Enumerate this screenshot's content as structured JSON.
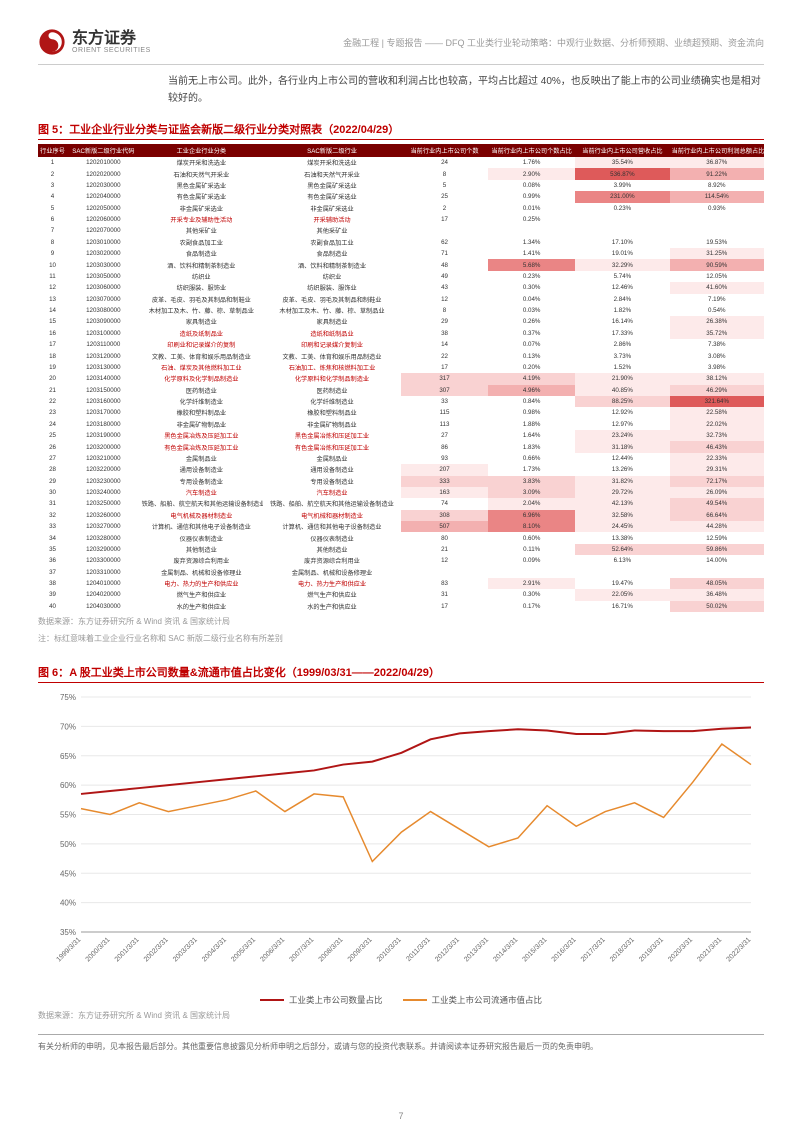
{
  "header": {
    "brand_cn": "东方证券",
    "brand_en": "ORIENT SECURITIES",
    "meta": "金融工程 | 专题报告 —— DFQ 工业类行业轮动策略：中观行业数据、分析师预期、业绩超预期、资金流向"
  },
  "body_para": "当前无上市公司。此外，各行业内上市公司的营收和利润占比也较高，平均占比超过 40%，也反映出了能上市的公司业绩确实也是相对较好的。",
  "figure5": {
    "label": "图 5：",
    "caption": "工业企业行业分类与证监会新版二级行业分类对照表",
    "date": "（2022/04/29）",
    "columns": [
      "行业序号",
      "SAC新版二级行业代码",
      "工业企业行业分类",
      "SAC新版二级行业",
      "当前行业内上市公司个数",
      "当前行业内上市公司个数占比",
      "当前行业内上市公司营收占比",
      "当前行业内上市公司利润总额占比"
    ],
    "col_widths": [
      "4%",
      "10%",
      "17%",
      "19%",
      "12%",
      "12%",
      "13%",
      "13%"
    ],
    "heat_palette": {
      "none": "#ffffff",
      "l1": "#fdeaea",
      "l2": "#f9d2d2",
      "l3": "#f3b0b0",
      "l4": "#ea8585",
      "l5": "#de5a5a"
    },
    "rows": [
      {
        "n": 1,
        "code": "1202010000",
        "a": "煤炭开采和洗选业",
        "b": "煤炭开采和洗选业",
        "c": "24",
        "d": "1.76%",
        "e": "35.54%",
        "f": "36.87%",
        "red": false,
        "h": [
          "none",
          "none",
          "l1",
          "l1"
        ]
      },
      {
        "n": 2,
        "code": "1202020000",
        "a": "石油和天然气开采业",
        "b": "石油和天然气开采业",
        "c": "8",
        "d": "2.90%",
        "e": "536.87%",
        "f": "91.22%",
        "red": false,
        "h": [
          "none",
          "l1",
          "l5",
          "l3"
        ]
      },
      {
        "n": 3,
        "code": "1202030000",
        "a": "黑色金属矿采选业",
        "b": "黑色金属矿采选业",
        "c": "5",
        "d": "0.08%",
        "e": "3.99%",
        "f": "8.92%",
        "red": false,
        "h": [
          "none",
          "none",
          "none",
          "none"
        ]
      },
      {
        "n": 4,
        "code": "1202040000",
        "a": "有色金属矿采选业",
        "b": "有色金属矿采选业",
        "c": "25",
        "d": "0.99%",
        "e": "231.00%",
        "f": "114.54%",
        "red": false,
        "h": [
          "none",
          "none",
          "l4",
          "l3"
        ]
      },
      {
        "n": 5,
        "code": "1202050000",
        "a": "非金属矿采选业",
        "b": "非金属矿采选业",
        "c": "2",
        "d": "0.01%",
        "e": "0.23%",
        "f": "0.93%",
        "red": false,
        "h": [
          "none",
          "none",
          "none",
          "none"
        ]
      },
      {
        "n": 6,
        "code": "1202060000",
        "a": "开采专业及辅助性活动",
        "b": "开采辅助活动",
        "c": "17",
        "d": "0.25%",
        "e": "",
        "f": "",
        "red": true,
        "h": [
          "none",
          "none",
          "none",
          "none"
        ]
      },
      {
        "n": 7,
        "code": "1202070000",
        "a": "其他采矿业",
        "b": "其他采矿业",
        "c": "",
        "d": "",
        "e": "",
        "f": "",
        "red": false,
        "h": [
          "none",
          "none",
          "none",
          "none"
        ]
      },
      {
        "n": 8,
        "code": "1203010000",
        "a": "农副食品加工业",
        "b": "农副食品加工业",
        "c": "62",
        "d": "1.34%",
        "e": "17.10%",
        "f": "19.53%",
        "red": false,
        "h": [
          "none",
          "none",
          "none",
          "none"
        ]
      },
      {
        "n": 9,
        "code": "1203020000",
        "a": "食品制造业",
        "b": "食品制造业",
        "c": "71",
        "d": "1.41%",
        "e": "19.01%",
        "f": "31.25%",
        "red": false,
        "h": [
          "none",
          "none",
          "none",
          "l1"
        ]
      },
      {
        "n": 10,
        "code": "1203030000",
        "a": "酒、饮料和精制茶制造业",
        "b": "酒、饮料和精制茶制造业",
        "c": "48",
        "d": "5.68%",
        "e": "32.29%",
        "f": "90.59%",
        "red": false,
        "h": [
          "none",
          "l4",
          "l1",
          "l3"
        ]
      },
      {
        "n": 11,
        "code": "1203050000",
        "a": "纺织业",
        "b": "纺织业",
        "c": "49",
        "d": "0.23%",
        "e": "5.74%",
        "f": "12.05%",
        "red": false,
        "h": [
          "none",
          "none",
          "none",
          "none"
        ]
      },
      {
        "n": 12,
        "code": "1203060000",
        "a": "纺织服装、服饰业",
        "b": "纺织服装、服饰业",
        "c": "43",
        "d": "0.30%",
        "e": "12.46%",
        "f": "41.60%",
        "red": false,
        "h": [
          "none",
          "none",
          "none",
          "l1"
        ]
      },
      {
        "n": 13,
        "code": "1203070000",
        "a": "皮革、毛皮、羽毛及其制品和制鞋业",
        "b": "皮革、毛皮、羽毛及其制品和制鞋业",
        "c": "12",
        "d": "0.04%",
        "e": "2.84%",
        "f": "7.19%",
        "red": false,
        "h": [
          "none",
          "none",
          "none",
          "none"
        ]
      },
      {
        "n": 14,
        "code": "1203080000",
        "a": "木材加工及木、竹、藤、棕、草制品业",
        "b": "木材加工及木、竹、藤、棕、草制品业",
        "c": "8",
        "d": "0.03%",
        "e": "1.82%",
        "f": "0.54%",
        "red": false,
        "h": [
          "none",
          "none",
          "none",
          "none"
        ]
      },
      {
        "n": 15,
        "code": "1203090000",
        "a": "家具制造业",
        "b": "家具制造业",
        "c": "29",
        "d": "0.26%",
        "e": "16.14%",
        "f": "26.38%",
        "red": false,
        "h": [
          "none",
          "none",
          "none",
          "l1"
        ]
      },
      {
        "n": 16,
        "code": "1203100000",
        "a": "造纸及纸制品业",
        "b": "造纸和纸制品业",
        "c": "38",
        "d": "0.37%",
        "e": "17.33%",
        "f": "35.72%",
        "red": true,
        "h": [
          "none",
          "none",
          "none",
          "l1"
        ]
      },
      {
        "n": 17,
        "code": "1203110000",
        "a": "印刷业和记录媒介的复制",
        "b": "印刷和记录媒介复制业",
        "c": "14",
        "d": "0.07%",
        "e": "2.86%",
        "f": "7.38%",
        "red": true,
        "h": [
          "none",
          "none",
          "none",
          "none"
        ]
      },
      {
        "n": 18,
        "code": "1203120000",
        "a": "文教、工美、体育和娱乐用品制造业",
        "b": "文教、工美、体育和娱乐用品制造业",
        "c": "22",
        "d": "0.13%",
        "e": "3.73%",
        "f": "3.08%",
        "red": false,
        "h": [
          "none",
          "none",
          "none",
          "none"
        ]
      },
      {
        "n": 19,
        "code": "1203130000",
        "a": "石油、煤炭及其他燃料加工业",
        "b": "石油加工、炼焦和核燃料加工业",
        "c": "17",
        "d": "0.20%",
        "e": "1.52%",
        "f": "3.98%",
        "red": true,
        "h": [
          "none",
          "none",
          "none",
          "none"
        ]
      },
      {
        "n": 20,
        "code": "1203140000",
        "a": "化学原料及化学制品制造业",
        "b": "化学原料和化学制品制造业",
        "c": "317",
        "d": "4.19%",
        "e": "21.90%",
        "f": "38.12%",
        "red": true,
        "h": [
          "l2",
          "l2",
          "l1",
          "l1"
        ]
      },
      {
        "n": 21,
        "code": "1203150000",
        "a": "医药制造业",
        "b": "医药制造业",
        "c": "307",
        "d": "4.96%",
        "e": "40.85%",
        "f": "46.29%",
        "red": false,
        "h": [
          "l2",
          "l3",
          "l1",
          "l2"
        ]
      },
      {
        "n": 22,
        "code": "1203160000",
        "a": "化学纤维制造业",
        "b": "化学纤维制造业",
        "c": "33",
        "d": "0.84%",
        "e": "88.25%",
        "f": "321.64%",
        "red": false,
        "h": [
          "none",
          "none",
          "l2",
          "l5"
        ]
      },
      {
        "n": 23,
        "code": "1203170000",
        "a": "橡胶和塑料制品业",
        "b": "橡胶和塑料制品业",
        "c": "115",
        "d": "0.98%",
        "e": "12.92%",
        "f": "22.58%",
        "red": false,
        "h": [
          "none",
          "none",
          "none",
          "l1"
        ]
      },
      {
        "n": 24,
        "code": "1203180000",
        "a": "非金属矿物制品业",
        "b": "非金属矿物制品业",
        "c": "113",
        "d": "1.88%",
        "e": "12.97%",
        "f": "22.02%",
        "red": false,
        "h": [
          "none",
          "none",
          "none",
          "l1"
        ]
      },
      {
        "n": 25,
        "code": "1203190000",
        "a": "黑色金属冶炼及压延加工业",
        "b": "黑色金属冶炼和压延加工业",
        "c": "27",
        "d": "1.64%",
        "e": "23.24%",
        "f": "32.73%",
        "red": true,
        "h": [
          "none",
          "none",
          "l1",
          "l1"
        ]
      },
      {
        "n": 26,
        "code": "1203200000",
        "a": "有色金属冶炼及压延加工业",
        "b": "有色金属冶炼和压延加工业",
        "c": "86",
        "d": "1.83%",
        "e": "31.18%",
        "f": "46.43%",
        "red": true,
        "h": [
          "none",
          "none",
          "l1",
          "l2"
        ]
      },
      {
        "n": 27,
        "code": "1203210000",
        "a": "金属制品业",
        "b": "金属制品业",
        "c": "93",
        "d": "0.66%",
        "e": "12.44%",
        "f": "22.33%",
        "red": false,
        "h": [
          "none",
          "none",
          "none",
          "l1"
        ]
      },
      {
        "n": 28,
        "code": "1203220000",
        "a": "通用设备制造业",
        "b": "通用设备制造业",
        "c": "207",
        "d": "1.73%",
        "e": "13.26%",
        "f": "29.31%",
        "red": false,
        "h": [
          "l1",
          "none",
          "none",
          "l1"
        ]
      },
      {
        "n": 29,
        "code": "1203230000",
        "a": "专用设备制造业",
        "b": "专用设备制造业",
        "c": "333",
        "d": "3.83%",
        "e": "31.82%",
        "f": "72.17%",
        "red": false,
        "h": [
          "l2",
          "l2",
          "l1",
          "l2"
        ]
      },
      {
        "n": 30,
        "code": "1203240000",
        "a": "汽车制造业",
        "b": "汽车制造业",
        "c": "163",
        "d": "3.09%",
        "e": "29.72%",
        "f": "26.09%",
        "red": true,
        "h": [
          "l1",
          "l2",
          "l1",
          "l1"
        ]
      },
      {
        "n": 31,
        "code": "1203250000",
        "a": "铁路、船舶、航空航天和其他运输设备制造业",
        "b": "铁路、船舶、航空航天和其他运输设备制造业",
        "c": "74",
        "d": "2.04%",
        "e": "42.13%",
        "f": "49.54%",
        "red": false,
        "h": [
          "none",
          "l1",
          "l1",
          "l2"
        ]
      },
      {
        "n": 32,
        "code": "1203260000",
        "a": "电气机械及器材制造业",
        "b": "电气机械和器材制造业",
        "c": "308",
        "d": "6.96%",
        "e": "32.58%",
        "f": "66.64%",
        "red": true,
        "h": [
          "l2",
          "l4",
          "l1",
          "l2"
        ]
      },
      {
        "n": 33,
        "code": "1203270000",
        "a": "计算机、通信和其他电子设备制造业",
        "b": "计算机、通信和其他电子设备制造业",
        "c": "507",
        "d": "8.10%",
        "e": "24.45%",
        "f": "44.28%",
        "red": false,
        "h": [
          "l3",
          "l4",
          "l1",
          "l1"
        ]
      },
      {
        "n": 34,
        "code": "1203280000",
        "a": "仪器仪表制造业",
        "b": "仪器仪表制造业",
        "c": "80",
        "d": "0.60%",
        "e": "13.38%",
        "f": "12.59%",
        "red": false,
        "h": [
          "none",
          "none",
          "none",
          "none"
        ]
      },
      {
        "n": 35,
        "code": "1203290000",
        "a": "其他制造业",
        "b": "其他制造业",
        "c": "21",
        "d": "0.11%",
        "e": "52.64%",
        "f": "59.86%",
        "red": false,
        "h": [
          "none",
          "none",
          "l2",
          "l2"
        ]
      },
      {
        "n": 36,
        "code": "1203300000",
        "a": "废弃资源综合利用业",
        "b": "废弃资源综合利用业",
        "c": "12",
        "d": "0.09%",
        "e": "6.13%",
        "f": "14.00%",
        "red": false,
        "h": [
          "none",
          "none",
          "none",
          "none"
        ]
      },
      {
        "n": 37,
        "code": "1203310000",
        "a": "金属制品、机械和设备修理业",
        "b": "金属制品、机械和设备修理业",
        "c": "",
        "d": "",
        "e": "",
        "f": "",
        "red": false,
        "h": [
          "none",
          "none",
          "none",
          "none"
        ]
      },
      {
        "n": 38,
        "code": "1204010000",
        "a": "电力、热力的生产和供应业",
        "b": "电力、热力生产和供应业",
        "c": "83",
        "d": "2.91%",
        "e": "19.47%",
        "f": "48.05%",
        "red": true,
        "h": [
          "none",
          "l1",
          "none",
          "l2"
        ]
      },
      {
        "n": 39,
        "code": "1204020000",
        "a": "燃气生产和供应业",
        "b": "燃气生产和供应业",
        "c": "31",
        "d": "0.30%",
        "e": "22.05%",
        "f": "36.48%",
        "red": false,
        "h": [
          "none",
          "none",
          "l1",
          "l1"
        ]
      },
      {
        "n": 40,
        "code": "1204030000",
        "a": "水的生产和供应业",
        "b": "水的生产和供应业",
        "c": "17",
        "d": "0.17%",
        "e": "16.71%",
        "f": "50.02%",
        "red": false,
        "h": [
          "none",
          "none",
          "none",
          "l2"
        ]
      }
    ],
    "source": "数据来源：东方证券研究所 & Wind 资讯 & 国家统计局",
    "note": "注：标红意味着工业企业行业名称和 SAC 新版二级行业名称有所差别"
  },
  "figure6": {
    "label": "图 6：",
    "caption": "A 股工业类上市公司数量&流通市值占比变化",
    "date": "（1999/03/31——2022/04/29）",
    "type": "line",
    "background_color": "#ffffff",
    "grid_color": "#e8e8e8",
    "ylim": [
      0.35,
      0.75
    ],
    "ytick_step": 0.05,
    "ytick_labels": [
      "35%",
      "40%",
      "45%",
      "50%",
      "55%",
      "60%",
      "65%",
      "70%",
      "75%"
    ],
    "x_labels": [
      "1999/3/31",
      "2000/3/31",
      "2001/3/31",
      "2002/3/31",
      "2003/3/31",
      "2004/3/31",
      "2005/3/31",
      "2006/3/31",
      "2007/3/31",
      "2008/3/31",
      "2009/3/31",
      "2010/3/31",
      "2011/3/31",
      "2012/3/31",
      "2013/3/31",
      "2014/3/31",
      "2015/3/31",
      "2016/3/31",
      "2017/3/31",
      "2018/3/31",
      "2019/3/31",
      "2020/3/31",
      "2021/3/31",
      "2022/3/31"
    ],
    "series": [
      {
        "name": "工业类上市公司数量占比",
        "color": "#b01515",
        "line_width": 2,
        "y": [
          0.585,
          0.59,
          0.595,
          0.6,
          0.605,
          0.61,
          0.615,
          0.62,
          0.625,
          0.635,
          0.64,
          0.655,
          0.678,
          0.688,
          0.692,
          0.695,
          0.693,
          0.687,
          0.687,
          0.693,
          0.692,
          0.692,
          0.696,
          0.698
        ]
      },
      {
        "name": "工业类上市公司流通市值占比",
        "color": "#e68a2e",
        "line_width": 1.5,
        "y": [
          0.56,
          0.55,
          0.57,
          0.555,
          0.565,
          0.575,
          0.59,
          0.555,
          0.585,
          0.58,
          0.47,
          0.52,
          0.555,
          0.525,
          0.495,
          0.51,
          0.565,
          0.53,
          0.555,
          0.57,
          0.545,
          0.605,
          0.67,
          0.635
        ]
      }
    ],
    "legend": [
      "工业类上市公司数量占比",
      "工业类上市公司流通市值占比"
    ],
    "source": "数据来源：东方证券研究所 & Wind 资讯 & 国家统计局"
  },
  "footer": "有关分析师的申明，见本报告最后部分。其他重要信息披露见分析师申明之后部分，或请与您的投资代表联系。并请阅读本证券研究报告最后一页的免责申明。",
  "page_number": "7"
}
